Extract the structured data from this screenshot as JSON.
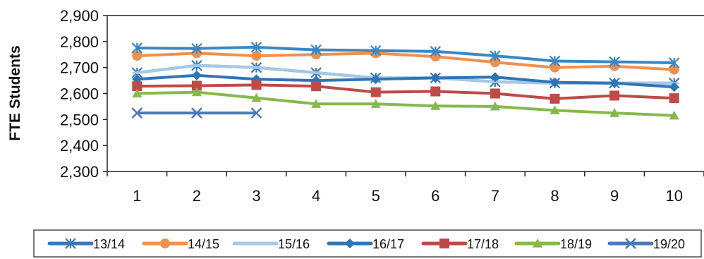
{
  "chart_data": {
    "type": "line",
    "title": "",
    "xlabel": "",
    "ylabel": "FTE Students",
    "x": [
      1,
      2,
      3,
      4,
      5,
      6,
      7,
      8,
      9,
      10
    ],
    "xticks": [
      "1",
      "2",
      "3",
      "4",
      "5",
      "6",
      "7",
      "8",
      "9",
      "10"
    ],
    "ylim": [
      2300,
      2900
    ],
    "yticks": [
      "2,300",
      "2,400",
      "2,500",
      "2,600",
      "2,700",
      "2,800",
      "2,900"
    ],
    "ytick_values": [
      2300,
      2400,
      2500,
      2600,
      2700,
      2800,
      2900
    ],
    "grid": false,
    "legend_position": "bottom",
    "series": [
      {
        "name": "13/14",
        "color": "#3a78b5",
        "marker": "asterisk",
        "values": [
          2680,
          2708,
          2700,
          2680,
          2660,
          2660,
          2645,
          2640,
          2640,
          2640
        ]
      },
      {
        "name": "14/15",
        "color": "#f0904c",
        "marker": "circle",
        "values": [
          2745,
          2755,
          2745,
          2750,
          2755,
          2742,
          2720,
          2700,
          2705,
          2692
        ]
      },
      {
        "name": "15/16",
        "color": "#a5c8e6",
        "marker": "dash",
        "values": [
          2680,
          2708,
          2700,
          2680,
          2660,
          2660,
          2645,
          2640,
          2640,
          2640
        ]
      },
      {
        "name": "16/17",
        "color": "#2e75b6",
        "marker": "diamond",
        "values": [
          2655,
          2670,
          2655,
          2650,
          2655,
          2660,
          2663,
          2643,
          2640,
          2625
        ]
      },
      {
        "name": "17/18",
        "color": "#be4b48",
        "marker": "square",
        "values": [
          2628,
          2630,
          2633,
          2628,
          2605,
          2608,
          2600,
          2580,
          2592,
          2582
        ]
      },
      {
        "name": "18/19",
        "color": "#86b94c",
        "marker": "triangle",
        "values": [
          2600,
          2605,
          2583,
          2560,
          2560,
          2552,
          2550,
          2535,
          2525,
          2515
        ]
      },
      {
        "name": "19/20",
        "color": "#4b79b6",
        "marker": "x",
        "values": [
          2525,
          2525,
          2525,
          null,
          null,
          null,
          null,
          null,
          null,
          null
        ]
      },
      {
        "name": "",
        "color": "#3a87c4",
        "marker": "asterisk",
        "values": [
          2775,
          2773,
          2778,
          2768,
          2765,
          2762,
          2745,
          2725,
          2722,
          2718
        ]
      }
    ]
  }
}
